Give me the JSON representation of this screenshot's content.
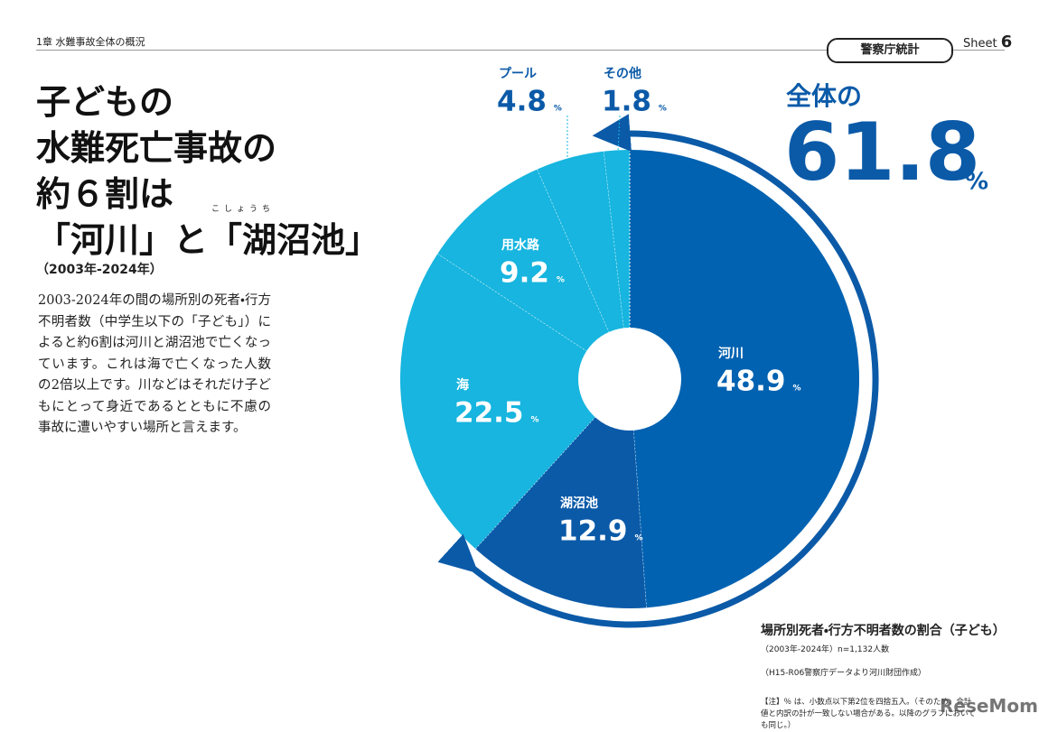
{
  "header": {
    "chapter": "1章 水難事故全体の概況",
    "badge": "警察庁統計",
    "sheet_label": "Sheet",
    "sheet_number": "6"
  },
  "title": {
    "lines": [
      "子どもの",
      "水難死亡事故の",
      "約６割は",
      "「河川」と「湖沼池」"
    ],
    "ruby": "こしょうち",
    "period": "（2003年-2024年）"
  },
  "body": "2003-2024年の間の場所別の死者・行方不明者数（中学生以下の「子ども」）によると約6割は河川と湖沼池で亡くなっています。これは海で亡くなった人数の2倍以上です。川などはそれだけ子どもにとって身近であるとともに不慮の事故に遭いやすい場所と言えます。",
  "chart_data": {
    "type": "pie",
    "categories": [
      "河川",
      "湖沼池",
      "海",
      "用水路",
      "プール",
      "その他"
    ],
    "values": [
      48.9,
      12.9,
      22.5,
      9.2,
      4.8,
      1.8
    ],
    "unit": "%",
    "colors": [
      "#0062b1",
      "#0b5aa8",
      "#17b5df",
      "#17b5df",
      "#17b5df",
      "#17b5df"
    ],
    "annotation": {
      "prefix": "全体の",
      "value": "61.8",
      "unit": "%"
    },
    "caption": {
      "title": "場所別死者・行方不明者数の割合（子ども）",
      "period": "（2003年-2024年）n=1,132人数",
      "source": "（H15-R06警察庁データより河川財団作成）",
      "note": "【注】％ は、小数点以下第2位を四捨五入。（そのため、合計値と内訳の計が一致しない場合がある。以降のグラフにおいても同じ。）"
    }
  },
  "watermark": "ReseMom"
}
